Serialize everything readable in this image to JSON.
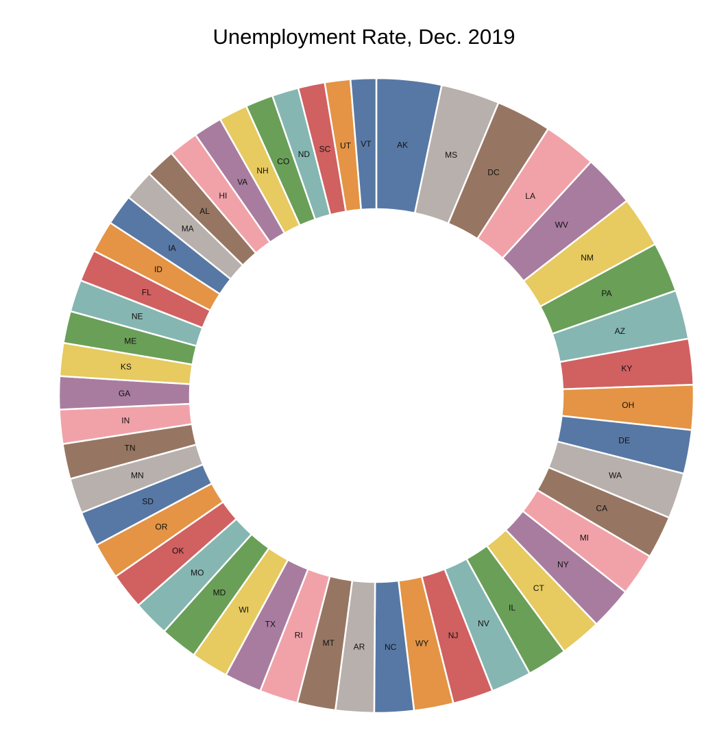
{
  "chart_data": {
    "type": "pie",
    "title": "Unemployment Rate, Dec. 2019",
    "hole": true,
    "start_angle": "12 o'clock",
    "direction": "clockwise",
    "palette": [
      "#5778a4",
      "#b8b0ac",
      "#967662",
      "#f1a2a9",
      "#a87c9f",
      "#e7ca60",
      "#6a9f58",
      "#85b6b2",
      "#d16061",
      "#e49444"
    ],
    "slices": [
      {
        "label": "AK",
        "value": 6.1
      },
      {
        "label": "MS",
        "value": 5.5
      },
      {
        "label": "DC",
        "value": 5.2
      },
      {
        "label": "LA",
        "value": 5.0
      },
      {
        "label": "WV",
        "value": 4.9
      },
      {
        "label": "NM",
        "value": 4.8
      },
      {
        "label": "PA",
        "value": 4.7
      },
      {
        "label": "AZ",
        "value": 4.6
      },
      {
        "label": "KY",
        "value": 4.3
      },
      {
        "label": "OH",
        "value": 4.2
      },
      {
        "label": "DE",
        "value": 4.1
      },
      {
        "label": "WA",
        "value": 4.3
      },
      {
        "label": "CA",
        "value": 4.0
      },
      {
        "label": "MI",
        "value": 4.0
      },
      {
        "label": "NY",
        "value": 4.0
      },
      {
        "label": "CT",
        "value": 3.9
      },
      {
        "label": "IL",
        "value": 3.8
      },
      {
        "label": "NV",
        "value": 3.8
      },
      {
        "label": "NJ",
        "value": 3.8
      },
      {
        "label": "WY",
        "value": 3.7
      },
      {
        "label": "NC",
        "value": 3.7
      },
      {
        "label": "AR",
        "value": 3.6
      },
      {
        "label": "MT",
        "value": 3.6
      },
      {
        "label": "RI",
        "value": 3.6
      },
      {
        "label": "TX",
        "value": 3.5
      },
      {
        "label": "WI",
        "value": 3.5
      },
      {
        "label": "MD",
        "value": 3.5
      },
      {
        "label": "MO",
        "value": 3.4
      },
      {
        "label": "OK",
        "value": 3.4
      },
      {
        "label": "OR",
        "value": 3.4
      },
      {
        "label": "SD",
        "value": 3.3
      },
      {
        "label": "MN",
        "value": 3.3
      },
      {
        "label": "TN",
        "value": 3.3
      },
      {
        "label": "IN",
        "value": 3.2
      },
      {
        "label": "GA",
        "value": 3.1
      },
      {
        "label": "KS",
        "value": 3.1
      },
      {
        "label": "ME",
        "value": 3.0
      },
      {
        "label": "NE",
        "value": 3.0
      },
      {
        "label": "FL",
        "value": 3.0
      },
      {
        "label": "ID",
        "value": 3.0
      },
      {
        "label": "IA",
        "value": 2.9
      },
      {
        "label": "MA",
        "value": 2.9
      },
      {
        "label": "AL",
        "value": 2.8
      },
      {
        "label": "HI",
        "value": 2.8
      },
      {
        "label": "VA",
        "value": 2.7
      },
      {
        "label": "NH",
        "value": 2.7
      },
      {
        "label": "CO",
        "value": 2.6
      },
      {
        "label": "ND",
        "value": 2.5
      },
      {
        "label": "SC",
        "value": 2.5
      },
      {
        "label": "UT",
        "value": 2.4
      },
      {
        "label": "VT",
        "value": 2.4
      }
    ]
  }
}
